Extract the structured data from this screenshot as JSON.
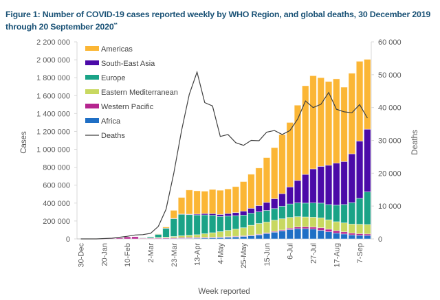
{
  "figure": {
    "title": "Figure 1: Number of COVID-19 cases reported weekly by WHO Region, and global deaths, 30 December 2019 through 20 September 2020",
    "title_marker": "**"
  },
  "chart_data": {
    "type": "bar",
    "stacked": true,
    "title": "Figure 1: Number of COVID-19 cases reported weekly by WHO Region, and global deaths, 30 December 2019 through 20 September 2020",
    "xlabel": "Week reported",
    "ylabel": "Cases",
    "y2label": "Deaths",
    "ylim": [
      0,
      2200000
    ],
    "y2lim": [
      0,
      60000
    ],
    "yticks": [
      "0",
      "200 000",
      "400 000",
      "600 000",
      "800 000",
      "1 000 000",
      "1 200 000",
      "1 400 000",
      "1 600 000",
      "1 800 000",
      "2 000 000",
      "2 200 000"
    ],
    "y2ticks": [
      "0",
      "10 000",
      "20 000",
      "30 000",
      "40 000",
      "50 000",
      "60 000"
    ],
    "xtick_labels": [
      "30-Dec",
      "20-Jan",
      "10-Feb",
      "2-Mar",
      "23-Mar",
      "13-Apr",
      "4-May",
      "25-May",
      "15-Jun",
      "6-Jul",
      "27-Jul",
      "17-Aug",
      "7-Sep"
    ],
    "xtick_every": 3,
    "grid": false,
    "legend_position": "top-left",
    "categories": [
      "30-Dec",
      "6-Jan",
      "13-Jan",
      "20-Jan",
      "27-Jan",
      "3-Feb",
      "10-Feb",
      "17-Feb",
      "24-Feb",
      "2-Mar",
      "9-Mar",
      "16-Mar",
      "23-Mar",
      "30-Mar",
      "6-Apr",
      "13-Apr",
      "20-Apr",
      "27-Apr",
      "4-May",
      "11-May",
      "18-May",
      "25-May",
      "1-Jun",
      "8-Jun",
      "15-Jun",
      "22-Jun",
      "29-Jun",
      "6-Jul",
      "13-Jul",
      "20-Jul",
      "27-Jul",
      "3-Aug",
      "10-Aug",
      "17-Aug",
      "24-Aug",
      "31-Aug",
      "7-Sep",
      "14-Sep"
    ],
    "series": [
      {
        "name": "Africa",
        "color": "#1f6fc5",
        "values": [
          0,
          0,
          0,
          0,
          0,
          0,
          0,
          0,
          0,
          0,
          0,
          1000,
          3000,
          5000,
          6000,
          8000,
          10000,
          12000,
          14000,
          18000,
          22000,
          28000,
          35000,
          45000,
          60000,
          75000,
          90000,
          105000,
          115000,
          115000,
          110000,
          95000,
          80000,
          65000,
          55000,
          45000,
          40000,
          38000
        ]
      },
      {
        "name": "Western Pacific",
        "color": "#b5258f",
        "values": [
          0,
          0,
          1000,
          2000,
          5000,
          10000,
          22000,
          24000,
          8000,
          7000,
          8000,
          9000,
          9000,
          10000,
          10000,
          9000,
          8000,
          7000,
          7000,
          7000,
          7000,
          7000,
          7000,
          7000,
          8000,
          9000,
          10000,
          15000,
          18000,
          20000,
          22000,
          30000,
          28000,
          27000,
          24000,
          20000,
          18000,
          17000
        ]
      },
      {
        "name": "Eastern Mediterranean",
        "color": "#c8d860",
        "values": [
          0,
          0,
          0,
          0,
          0,
          0,
          0,
          0,
          2000,
          5000,
          8000,
          10000,
          15000,
          20000,
          25000,
          30000,
          40000,
          50000,
          60000,
          70000,
          80000,
          90000,
          110000,
          120000,
          120000,
          125000,
          125000,
          120000,
          115000,
          110000,
          110000,
          110000,
          105000,
          100000,
          100000,
          100000,
          105000,
          105000
        ]
      },
      {
        "name": "Europe",
        "color": "#1aa387",
        "values": [
          0,
          0,
          0,
          0,
          0,
          0,
          0,
          0,
          3000,
          12000,
          35000,
          100000,
          200000,
          240000,
          230000,
          220000,
          210000,
          195000,
          170000,
          160000,
          150000,
          140000,
          135000,
          130000,
          130000,
          130000,
          140000,
          150000,
          155000,
          155000,
          160000,
          165000,
          170000,
          185000,
          205000,
          240000,
          290000,
          365000
        ]
      },
      {
        "name": "South-East Asia",
        "color": "#4b0aa8",
        "values": [
          0,
          0,
          0,
          0,
          0,
          0,
          0,
          0,
          0,
          0,
          0,
          1000,
          2000,
          3000,
          5000,
          10000,
          15000,
          18000,
          22000,
          28000,
          35000,
          45000,
          55000,
          70000,
          90000,
          110000,
          140000,
          190000,
          250000,
          320000,
          380000,
          410000,
          440000,
          470000,
          480000,
          545000,
          640000,
          700000
        ]
      },
      {
        "name": "Americas",
        "color": "#fbb635",
        "values": [
          0,
          0,
          0,
          0,
          0,
          0,
          0,
          0,
          0,
          0,
          5000,
          12000,
          90000,
          185000,
          270000,
          260000,
          250000,
          270000,
          270000,
          275000,
          290000,
          330000,
          380000,
          420000,
          500000,
          570000,
          660000,
          720000,
          840000,
          990000,
          1040000,
          990000,
          935000,
          940000,
          830000,
          900000,
          890000,
          780000
        ]
      }
    ],
    "line_series": {
      "name": "Deaths",
      "color": "#404040",
      "axis": "right",
      "values": [
        0,
        0,
        0,
        100,
        200,
        500,
        800,
        1200,
        1300,
        1700,
        3800,
        9000,
        20000,
        33000,
        44000,
        50800,
        41500,
        40500,
        31200,
        31800,
        29300,
        28500,
        30000,
        29900,
        32500,
        33000,
        31800,
        33000,
        36500,
        42000,
        40000,
        41000,
        44600,
        39500,
        38700,
        38400,
        40900,
        36800
      ]
    },
    "legend": [
      {
        "label": "Americas",
        "kind": "bar",
        "color": "#fbb635"
      },
      {
        "label": "South-East Asia",
        "kind": "bar",
        "color": "#4b0aa8"
      },
      {
        "label": "Europe",
        "kind": "bar",
        "color": "#1aa387"
      },
      {
        "label": "Eastern Mediterranean",
        "kind": "bar",
        "color": "#c8d860"
      },
      {
        "label": "Western Pacific",
        "kind": "bar",
        "color": "#b5258f"
      },
      {
        "label": "Africa",
        "kind": "bar",
        "color": "#1f6fc5"
      },
      {
        "label": "Deaths",
        "kind": "line",
        "color": "#404040"
      }
    ]
  }
}
